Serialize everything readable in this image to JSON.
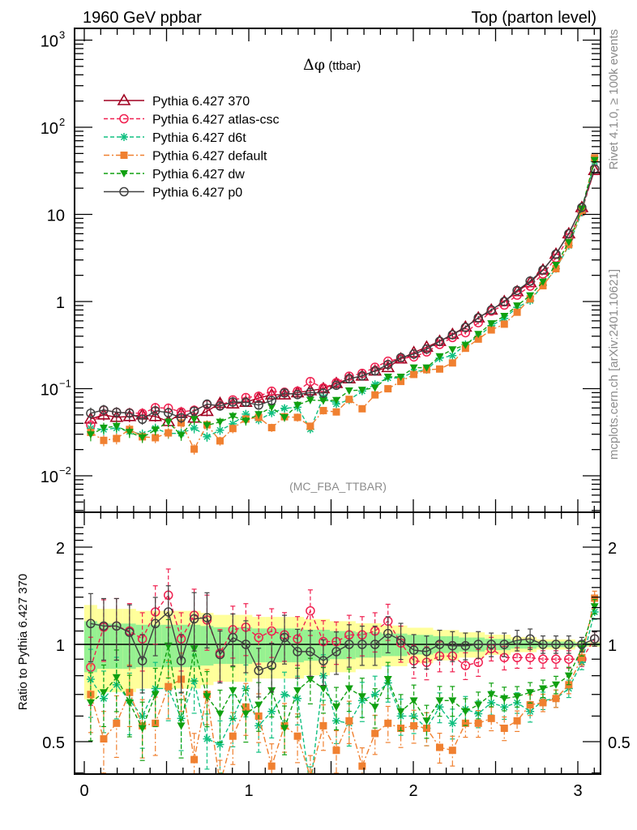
{
  "chart_data": {
    "type": "line",
    "header_left": "1960 GeV ppbar",
    "header_right": "Top (parton level)",
    "title": "Δφ (ttbar)",
    "title_symbol": "Δφ",
    "title_suffix": " (ttbar)",
    "analysis_tag": "(MC_FBA_TTBAR)",
    "side_text_top": "Rivet 4.1.0, ≥ 100k events",
    "side_text_bottom": "mcplots.cern.ch [arXiv:2401.10621]",
    "xlabel": "",
    "ylabel": "",
    "ratio_ylabel": "Ratio to Pythia 6.427 370",
    "xlim": [
      -0.05,
      3.2
    ],
    "ylim": [
      0.004,
      1300
    ],
    "yscale": "log",
    "ratio_ylim": [
      0.42,
      2.35
    ],
    "x_ticks": [
      "0",
      "1",
      "2",
      "3"
    ],
    "y_ticks": [
      "10^-2",
      "10^-1",
      "1",
      "10",
      "10^2",
      "10^3"
    ],
    "ratio_y_ticks": [
      "0.5",
      "1",
      "2"
    ],
    "legend_position": "top-left",
    "x": [
      0.039,
      0.118,
      0.196,
      0.275,
      0.353,
      0.432,
      0.511,
      0.589,
      0.668,
      0.746,
      0.825,
      0.903,
      0.982,
      1.06,
      1.139,
      1.217,
      1.296,
      1.374,
      1.453,
      1.532,
      1.61,
      1.689,
      1.767,
      1.846,
      1.924,
      2.003,
      2.081,
      2.16,
      2.238,
      2.317,
      2.395,
      2.474,
      2.553,
      2.631,
      2.71,
      2.788,
      2.867,
      2.945,
      3.024,
      3.102
    ],
    "reference": {
      "name": "Pythia 6.427 370",
      "values": [
        0.045,
        0.05,
        0.047,
        0.048,
        0.05,
        0.048,
        0.042,
        0.052,
        0.046,
        0.055,
        0.068,
        0.067,
        0.07,
        0.078,
        0.085,
        0.085,
        0.09,
        0.095,
        0.1,
        0.115,
        0.13,
        0.14,
        0.16,
        0.175,
        0.22,
        0.26,
        0.3,
        0.35,
        0.42,
        0.51,
        0.65,
        0.8,
        1.0,
        1.3,
        1.65,
        2.3,
        3.5,
        6.0,
        12.0,
        32.0
      ],
      "errors_rel": [
        0.18,
        0.16,
        0.16,
        0.16,
        0.15,
        0.15,
        0.15,
        0.15,
        0.15,
        0.14,
        0.13,
        0.13,
        0.13,
        0.12,
        0.12,
        0.12,
        0.12,
        0.11,
        0.11,
        0.1,
        0.1,
        0.09,
        0.09,
        0.08,
        0.08,
        0.07,
        0.07,
        0.06,
        0.06,
        0.05,
        0.05,
        0.04,
        0.04,
        0.03,
        0.03,
        0.02,
        0.02,
        0.02,
        0.01,
        0.01
      ]
    },
    "series": [
      {
        "name": "Pythia 6.427 370",
        "color": "#a00020",
        "marker": "triangle-open",
        "dash": "solid",
        "ratio": [
          1,
          1,
          1,
          1,
          1,
          1,
          1,
          1,
          1,
          1,
          1,
          1,
          1,
          1,
          1,
          1,
          1,
          1,
          1,
          1,
          1,
          1,
          1,
          1,
          1,
          1,
          1,
          1,
          1,
          1,
          1,
          1,
          1,
          1,
          1,
          1,
          1,
          1,
          1,
          1
        ]
      },
      {
        "name": "Pythia 6.427 atlas-csc",
        "color": "#f02050",
        "marker": "circle-open",
        "dash": "dashed",
        "ratio": [
          0.85,
          1.13,
          1.14,
          1.1,
          1.04,
          1.26,
          1.42,
          1.04,
          1.23,
          1.19,
          0.94,
          1.11,
          1.13,
          1.05,
          1.1,
          1.07,
          1.04,
          1.27,
          1.02,
          1.02,
          1.07,
          1.07,
          1.1,
          1.18,
          1.01,
          0.89,
          0.88,
          0.92,
          0.92,
          0.86,
          0.88,
          0.97,
          0.91,
          0.91,
          0.91,
          0.9,
          0.9,
          0.9,
          0.9,
          1.04
        ]
      },
      {
        "name": "Pythia 6.427 d6t",
        "color": "#10c080",
        "marker": "star",
        "dash": "dashed",
        "ratio": [
          0.78,
          0.68,
          0.75,
          0.67,
          0.6,
          0.73,
          0.73,
          0.59,
          0.77,
          0.51,
          0.49,
          0.59,
          0.73,
          0.56,
          0.62,
          0.7,
          0.68,
          0.36,
          0.8,
          0.58,
          0.57,
          0.67,
          0.7,
          0.76,
          0.6,
          0.6,
          0.55,
          0.64,
          0.57,
          0.63,
          0.61,
          0.66,
          0.64,
          0.66,
          0.62,
          0.67,
          0.68,
          0.73,
          0.88,
          1.26
        ]
      },
      {
        "name": "Pythia 6.427 default",
        "color": "#f08030",
        "marker": "square",
        "dash": "dashdot",
        "ratio": [
          0.7,
          0.51,
          0.57,
          0.71,
          0.56,
          0.57,
          0.74,
          0.78,
          0.44,
          0.7,
          0.37,
          0.52,
          0.64,
          0.6,
          0.42,
          0.56,
          0.52,
          0.39,
          0.56,
          0.47,
          0.58,
          0.42,
          0.53,
          0.57,
          0.55,
          0.56,
          0.55,
          0.48,
          0.47,
          0.57,
          0.57,
          0.59,
          0.55,
          0.58,
          0.65,
          0.66,
          0.68,
          0.75,
          0.91,
          1.39
        ]
      },
      {
        "name": "Pythia 6.427 dw",
        "color": "#10a010",
        "marker": "triangle-down",
        "dash": "dashed",
        "ratio": [
          0.66,
          0.71,
          0.79,
          0.66,
          0.55,
          0.7,
          0.99,
          0.56,
          0.97,
          0.69,
          0.61,
          0.72,
          0.61,
          0.65,
          0.72,
          0.55,
          0.72,
          0.78,
          0.73,
          0.64,
          0.73,
          0.69,
          0.64,
          0.78,
          0.62,
          0.67,
          0.58,
          0.67,
          0.67,
          0.62,
          0.65,
          0.7,
          0.68,
          0.69,
          0.71,
          0.73,
          0.75,
          0.8,
          0.97,
          1.31
        ]
      },
      {
        "name": "Pythia 6.427 p0",
        "color": "#404040",
        "marker": "circle-open",
        "dash": "solid",
        "ratio": [
          1.16,
          1.14,
          1.14,
          1.09,
          0.89,
          1.16,
          1.26,
          0.89,
          1.2,
          1.21,
          0.93,
          1.05,
          1.0,
          0.83,
          0.86,
          1.05,
          0.95,
          0.95,
          0.89,
          0.95,
          1.0,
          1.0,
          1.0,
          1.08,
          1.03,
          0.96,
          0.95,
          1.0,
          0.99,
          0.99,
          1.0,
          1.0,
          1.0,
          1.03,
          1.04,
          1.0,
          1.0,
          1.0,
          1.0,
          1.04
        ]
      }
    ]
  }
}
